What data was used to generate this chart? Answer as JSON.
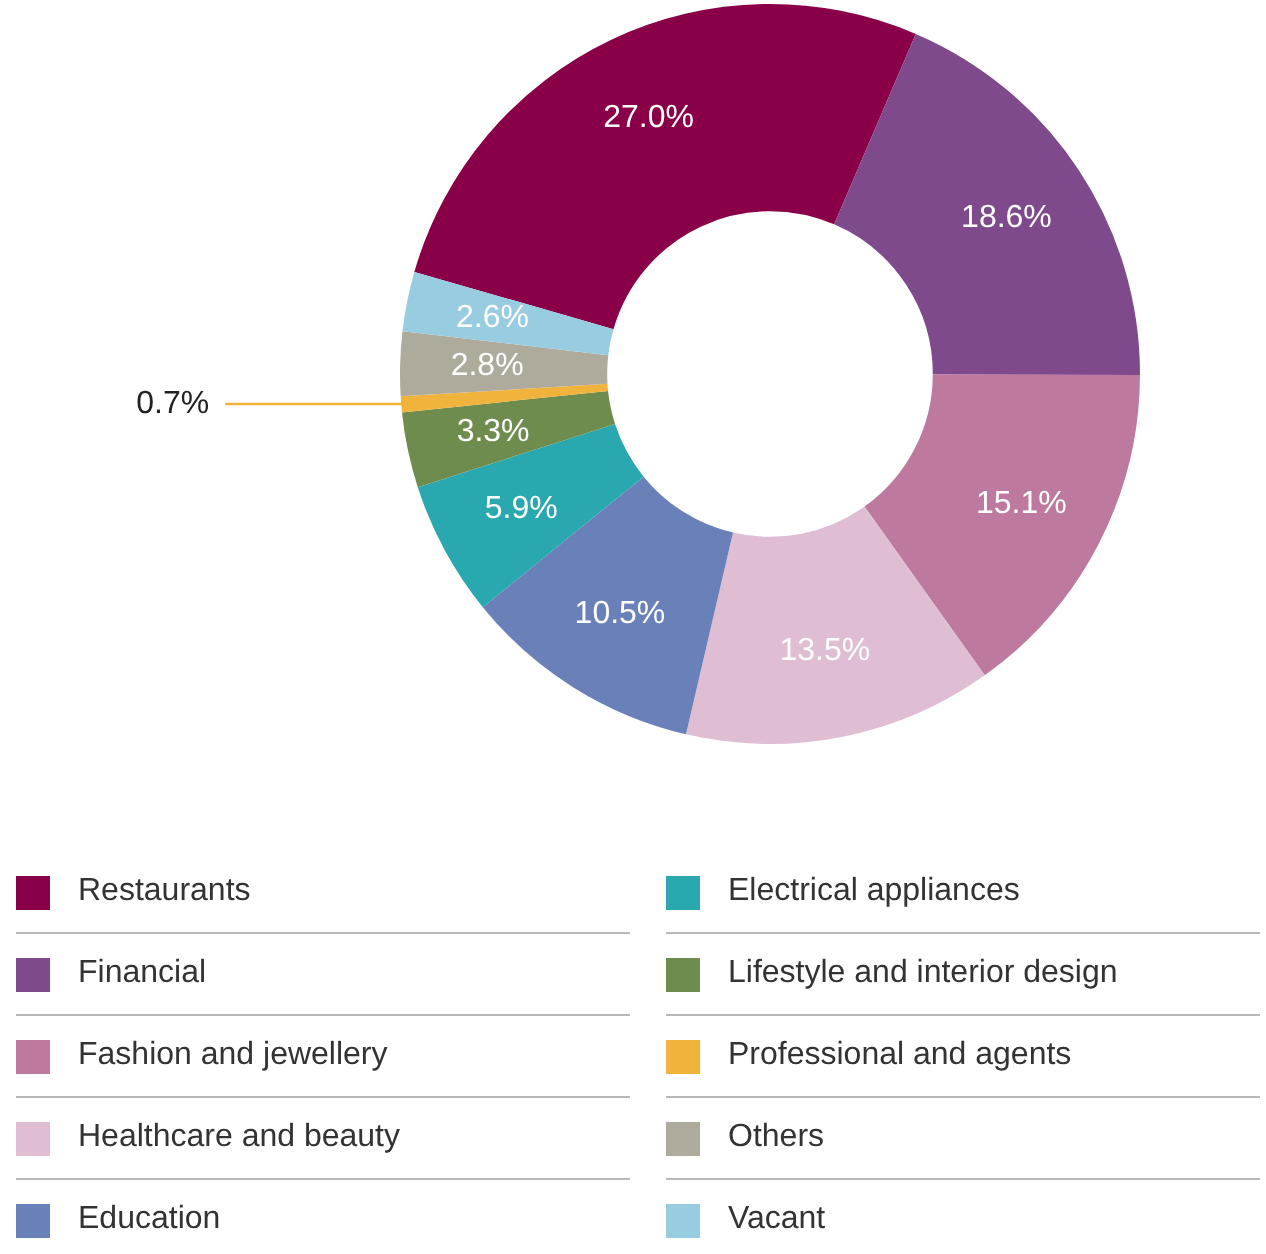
{
  "chart_data": {
    "type": "donut",
    "categories": [
      "Restaurants",
      "Financial",
      "Fashion and jewellery",
      "Healthcare and beauty",
      "Education",
      "Electrical appliances",
      "Lifestyle and interior design",
      "Professional and agents",
      "Others",
      "Vacant"
    ],
    "values": [
      27.0,
      18.6,
      15.1,
      13.5,
      10.5,
      5.9,
      3.3,
      0.7,
      2.8,
      2.6
    ],
    "colors": [
      "#8a0048",
      "#7f4a8c",
      "#bd7a9e",
      "#dfbdd3",
      "#6a80b8",
      "#2aa8b0",
      "#6e8c4e",
      "#f0b43c",
      "#aeaa9c",
      "#98cce0"
    ],
    "value_labels": [
      "27.0%",
      "18.6%",
      "15.1%",
      "13.5%",
      "10.5%",
      "5.9%",
      "3.3%",
      "0.7%",
      "2.8%",
      "2.6%"
    ],
    "legend": "bottom"
  }
}
